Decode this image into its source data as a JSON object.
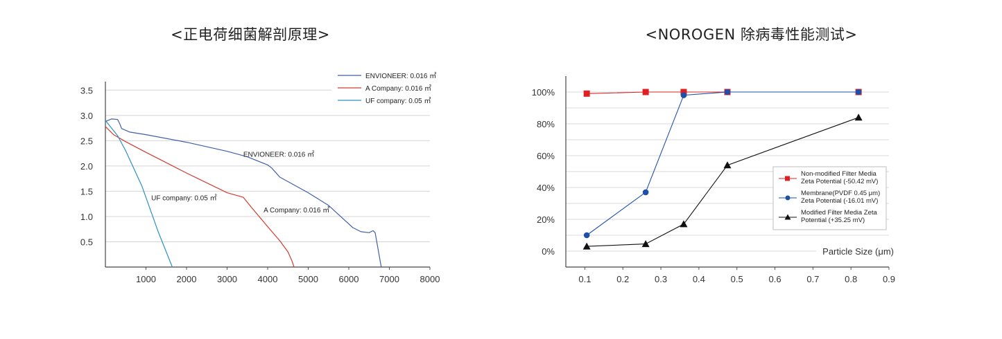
{
  "charts": {
    "left_title": "<正电荷细菌解剖原理>",
    "right_title": "<NOROGEN 除病毒性能测试>"
  },
  "chart_data": [
    {
      "type": "line",
      "title": "<正电荷细菌解剖原理>",
      "xlim": [
        0,
        8000
      ],
      "ylim": [
        0,
        3.6
      ],
      "x_ticks": [
        "1000",
        "2000",
        "3000",
        "4000",
        "5000",
        "6000",
        "7000",
        "8000"
      ],
      "y_ticks": [
        "0.5",
        "1.0",
        "1.5",
        "2.0",
        "2.5",
        "3.0",
        "3.5"
      ],
      "grid": "horizontal",
      "legend_position": "top-right",
      "series": [
        {
          "name": "ENVIONEER: 0.016 ㎡",
          "color": "#3f5fa8",
          "x": [
            0,
            150,
            300,
            350,
            400,
            600,
            1000,
            2000,
            3000,
            3500,
            4000,
            4100,
            4300,
            5000,
            5500,
            5800,
            6100,
            6300,
            6500,
            6600,
            6650,
            6800
          ],
          "y": [
            2.88,
            2.93,
            2.92,
            2.84,
            2.74,
            2.67,
            2.62,
            2.47,
            2.29,
            2.18,
            2.02,
            1.96,
            1.78,
            1.47,
            1.22,
            1.0,
            0.78,
            0.7,
            0.68,
            0.72,
            0.68,
            0.0
          ]
        },
        {
          "name": "A Company: 0.016 ㎡",
          "color": "#d13b30",
          "x": [
            0,
            200,
            500,
            1000,
            2000,
            3000,
            3400,
            3600,
            4000,
            4300,
            4500,
            4600,
            4650
          ],
          "y": [
            2.78,
            2.62,
            2.48,
            2.27,
            1.86,
            1.47,
            1.38,
            1.18,
            0.8,
            0.52,
            0.3,
            0.12,
            0.0
          ]
        },
        {
          "name": "UF company: 0.05 ㎡",
          "color": "#2a8fc4",
          "x": [
            0,
            300,
            500,
            900,
            1300,
            1650
          ],
          "y": [
            2.9,
            2.6,
            2.3,
            1.6,
            0.7,
            0.0
          ]
        }
      ],
      "annotations": [
        {
          "text": "ENVIONEER: 0.016 ㎡",
          "x": 3400,
          "y": 2.18
        },
        {
          "text": "UF company: 0.05 ㎡",
          "x": 1130,
          "y": 1.32
        },
        {
          "text": "A Company: 0.016 ㎡",
          "x": 3900,
          "y": 1.08
        }
      ]
    },
    {
      "type": "line",
      "title": "<NOROGEN 除病毒性能测试>",
      "xlabel": "Particle Size (μm)",
      "xlim": [
        0.05,
        0.9
      ],
      "ylim": [
        -0.1,
        1.1
      ],
      "x_ticks": [
        "0.1",
        "0.2",
        "0.3",
        "0.4",
        "0.5",
        "0.6",
        "0.7",
        "0.8",
        "0.9"
      ],
      "y_ticks": [
        "0%",
        "20%",
        "40%",
        "60%",
        "80%",
        "100%"
      ],
      "grid": "horizontal",
      "legend_position": "right",
      "series": [
        {
          "name": "Non-modified Filter Media Zeta Potential (-50.42 mV)",
          "legend_lines": [
            "Non-modified Filter Media",
            "Zeta Potential (-50.42 mV)"
          ],
          "color": "#e02020",
          "marker": "square",
          "x": [
            0.105,
            0.26,
            0.36,
            0.475,
            0.82
          ],
          "y": [
            0.99,
            1.0,
            1.0,
            1.0,
            1.0
          ]
        },
        {
          "name": "Membrane(PVDF 0.45 μm) Zeta Potential (-16.01 mV)",
          "legend_lines": [
            "Membrane(PVDF 0.45 μm)",
            "Zeta Potential (-16.01 mV)"
          ],
          "color": "#1f4fa8",
          "marker": "circle",
          "x": [
            0.105,
            0.26,
            0.36,
            0.475,
            0.82
          ],
          "y": [
            0.1,
            0.37,
            0.98,
            1.0,
            1.0
          ]
        },
        {
          "name": "Modified Filter Media Zeta Potential (+35.25 mV)",
          "legend_lines": [
            "Modified Filter Media Zeta",
            "Potential (+35.25 mV)"
          ],
          "color": "#111111",
          "marker": "triangle",
          "x": [
            0.105,
            0.26,
            0.36,
            0.475,
            0.82
          ],
          "y": [
            0.03,
            0.045,
            0.17,
            0.54,
            0.84
          ]
        }
      ]
    }
  ]
}
